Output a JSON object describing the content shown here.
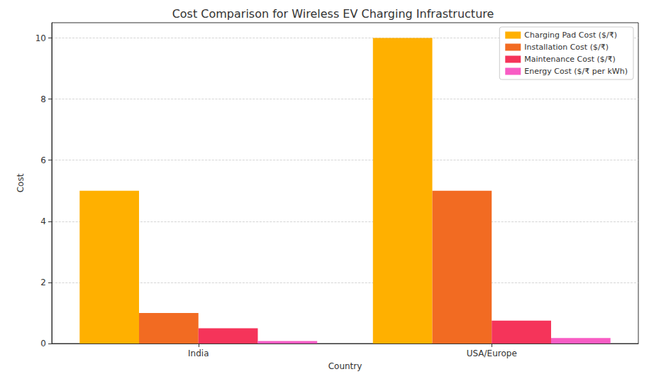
{
  "chart_data": {
    "type": "bar",
    "title": "Cost Comparison for Wireless EV Charging Infrastructure",
    "x_label": "Country",
    "y_label": "Cost",
    "categories": [
      "India",
      "USA/Europe"
    ],
    "series": [
      {
        "name": "Charging Pad Cost ($/₹)",
        "color": "#ffb000",
        "values": [
          5,
          10
        ]
      },
      {
        "name": "Installation Cost ($/₹)",
        "color": "#f26b22",
        "values": [
          1,
          5
        ]
      },
      {
        "name": "Maintenance Cost ($/₹)",
        "color": "#f5345a",
        "values": [
          0.5,
          0.75
        ]
      },
      {
        "name": "Energy Cost ($/₹ per kWh)",
        "color": "#f85cc4",
        "values": [
          0.08,
          0.18
        ]
      }
    ],
    "ylim": [
      0,
      10.5
    ],
    "yticks": [
      0,
      2,
      4,
      6,
      8,
      10
    ],
    "grid": true,
    "legend": "upper right"
  }
}
